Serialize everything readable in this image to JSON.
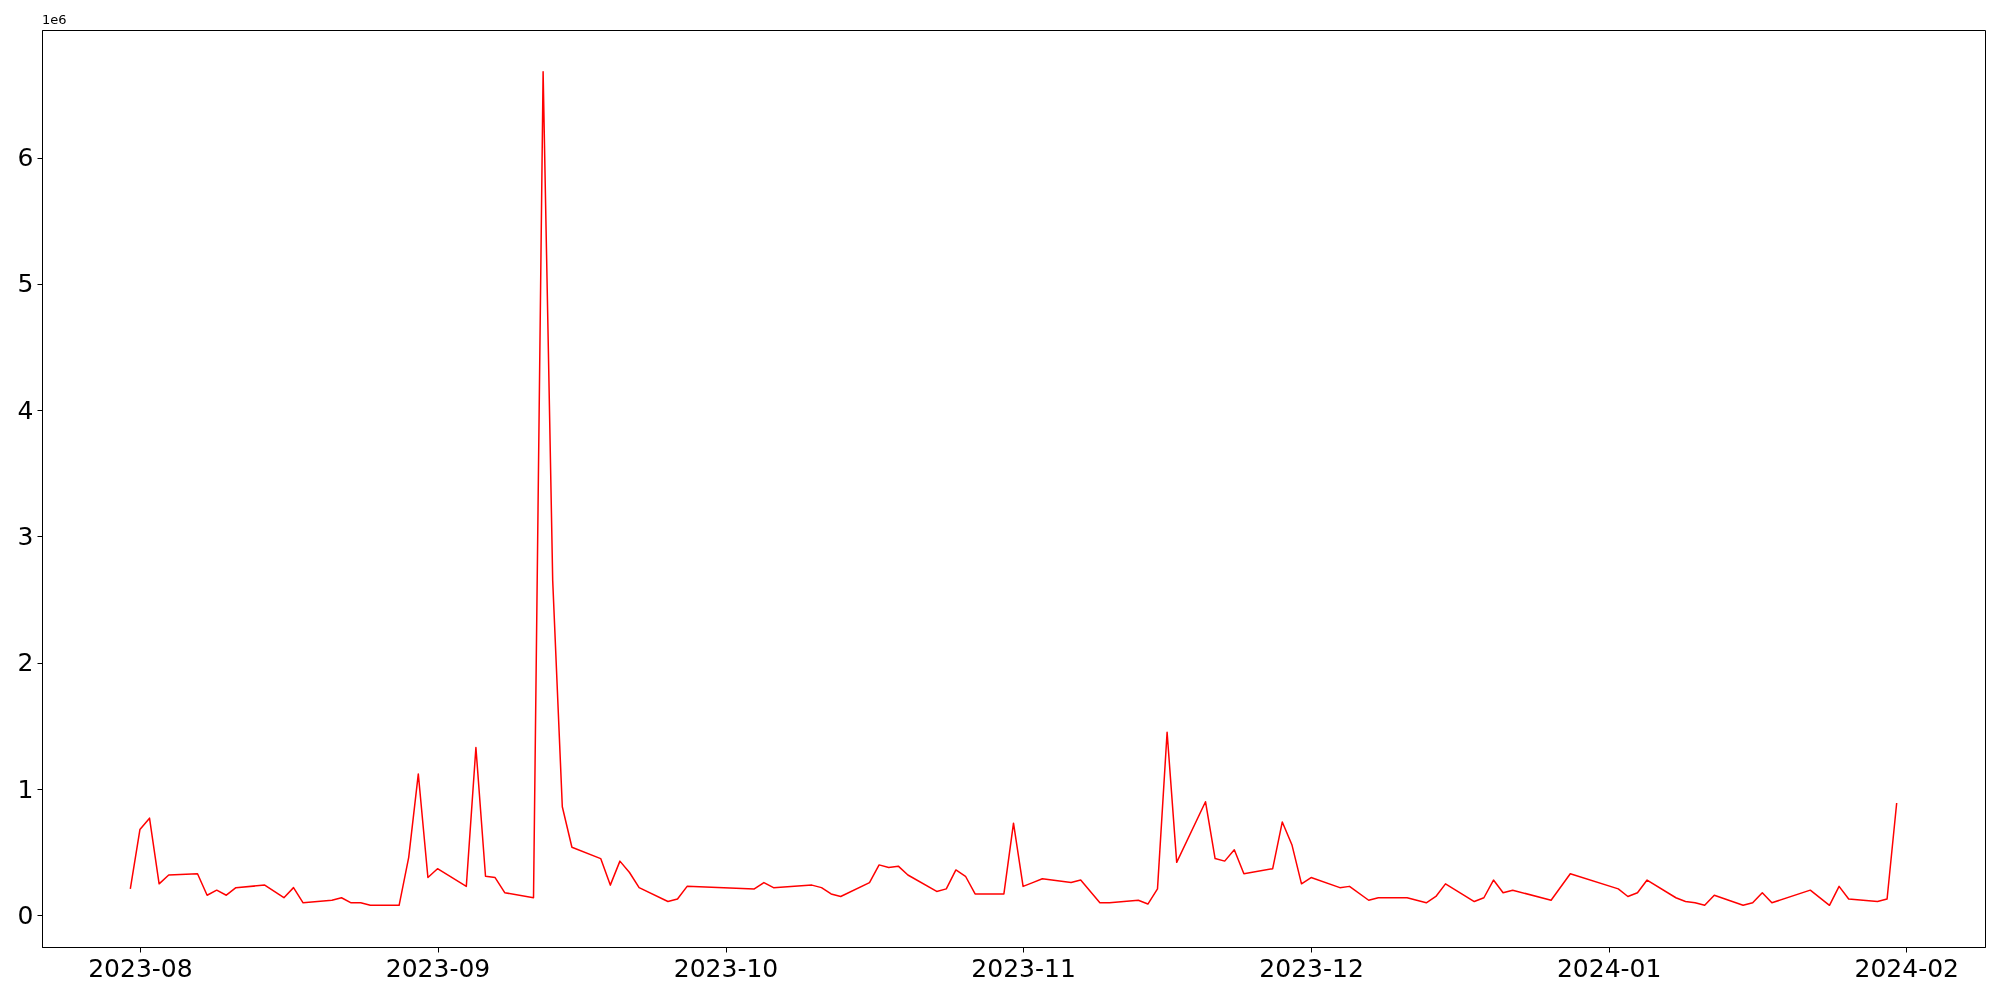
{
  "chart_data": {
    "type": "line",
    "x": [
      "2023-07-31",
      "2023-08-01",
      "2023-08-02",
      "2023-08-03",
      "2023-08-04",
      "2023-08-07",
      "2023-08-08",
      "2023-08-09",
      "2023-08-10",
      "2023-08-11",
      "2023-08-14",
      "2023-08-16",
      "2023-08-17",
      "2023-08-18",
      "2023-08-21",
      "2023-08-22",
      "2023-08-23",
      "2023-08-24",
      "2023-08-25",
      "2023-08-28",
      "2023-08-29",
      "2023-08-30",
      "2023-08-31",
      "2023-09-01",
      "2023-09-04",
      "2023-09-05",
      "2023-09-06",
      "2023-09-07",
      "2023-09-08",
      "2023-09-11",
      "2023-09-12",
      "2023-09-13",
      "2023-09-14",
      "2023-09-15",
      "2023-09-18",
      "2023-09-19",
      "2023-09-20",
      "2023-09-21",
      "2023-09-22",
      "2023-09-25",
      "2023-09-26",
      "2023-09-27",
      "2023-10-04",
      "2023-10-05",
      "2023-10-06",
      "2023-10-10",
      "2023-10-11",
      "2023-10-12",
      "2023-10-13",
      "2023-10-16",
      "2023-10-17",
      "2023-10-18",
      "2023-10-19",
      "2023-10-20",
      "2023-10-23",
      "2023-10-24",
      "2023-10-25",
      "2023-10-26",
      "2023-10-27",
      "2023-10-30",
      "2023-10-31",
      "2023-11-01",
      "2023-11-02",
      "2023-11-03",
      "2023-11-06",
      "2023-11-07",
      "2023-11-09",
      "2023-11-10",
      "2023-11-13",
      "2023-11-14",
      "2023-11-15",
      "2023-11-16",
      "2023-11-17",
      "2023-11-20",
      "2023-11-21",
      "2023-11-22",
      "2023-11-23",
      "2023-11-24",
      "2023-11-27",
      "2023-11-28",
      "2023-11-29",
      "2023-11-30",
      "2023-12-01",
      "2023-12-04",
      "2023-12-05",
      "2023-12-07",
      "2023-12-08",
      "2023-12-11",
      "2023-12-12",
      "2023-12-13",
      "2023-12-14",
      "2023-12-15",
      "2023-12-18",
      "2023-12-19",
      "2023-12-20",
      "2023-12-21",
      "2023-12-22",
      "2023-12-26",
      "2023-12-28",
      "2024-01-02",
      "2024-01-03",
      "2024-01-04",
      "2024-01-05",
      "2024-01-08",
      "2024-01-09",
      "2024-01-10",
      "2024-01-11",
      "2024-01-12",
      "2024-01-15",
      "2024-01-16",
      "2024-01-17",
      "2024-01-18",
      "2024-01-22",
      "2024-01-24",
      "2024-01-25",
      "2024-01-26",
      "2024-01-29",
      "2024-01-30",
      "2024-01-31"
    ],
    "series": [
      {
        "color": "#ff0000",
        "values": [
          0.21,
          0.68,
          0.77,
          0.25,
          0.32,
          0.33,
          0.16,
          0.2,
          0.16,
          0.22,
          0.24,
          0.14,
          0.22,
          0.1,
          0.12,
          0.14,
          0.1,
          0.1,
          0.08,
          0.08,
          0.46,
          1.12,
          0.3,
          0.37,
          0.23,
          1.33,
          0.31,
          0.3,
          0.18,
          0.14,
          6.68,
          2.65,
          0.86,
          0.54,
          0.45,
          0.24,
          0.43,
          0.34,
          0.22,
          0.11,
          0.13,
          0.23,
          0.21,
          0.26,
          0.22,
          0.24,
          0.22,
          0.17,
          0.15,
          0.26,
          0.4,
          0.38,
          0.39,
          0.32,
          0.19,
          0.21,
          0.36,
          0.31,
          0.17,
          0.17,
          0.73,
          0.23,
          0.26,
          0.29,
          0.26,
          0.28,
          0.1,
          0.1,
          0.12,
          0.09,
          0.21,
          1.45,
          0.42,
          0.9,
          0.45,
          0.43,
          0.52,
          0.33,
          0.37,
          0.74,
          0.56,
          0.25,
          0.3,
          0.22,
          0.23,
          0.12,
          0.14,
          0.14,
          0.12,
          0.1,
          0.15,
          0.25,
          0.11,
          0.14,
          0.28,
          0.18,
          0.2,
          0.12,
          0.33,
          0.21,
          0.15,
          0.18,
          0.28,
          0.14,
          0.11,
          0.1,
          0.08,
          0.16,
          0.08,
          0.1,
          0.18,
          0.1,
          0.2,
          0.08,
          0.23,
          0.13,
          0.11,
          0.13,
          0.89
        ]
      }
    ],
    "xlim": [
      "2023-07-21T19:12",
      "2024-02-09T04:48"
    ],
    "xticks": [
      "2023-08",
      "2023-09",
      "2023-10",
      "2023-11",
      "2023-12",
      "2024-01",
      "2024-02"
    ],
    "ylim": [
      -0.25,
      7.01
    ],
    "yticks": [
      0,
      1,
      2,
      3,
      4,
      5,
      6
    ],
    "annotations": [
      "1e6"
    ],
    "grid": false,
    "marker": "none",
    "line_style": "solid"
  }
}
